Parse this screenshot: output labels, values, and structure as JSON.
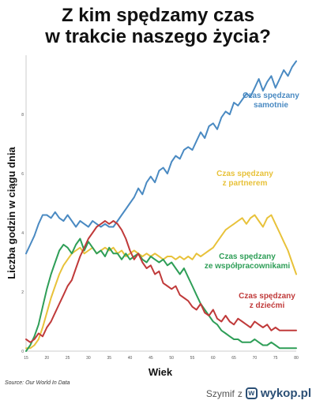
{
  "title_lines": [
    "Z kim spędzamy czas",
    "w trakcie naszego życia?"
  ],
  "source": "Source: Our World In Data",
  "watermark": {
    "author": "Szymif",
    "separator": "z",
    "site": "wykop.pl"
  },
  "chart_data": {
    "type": "line",
    "xlabel": "Wiek",
    "ylabel": "Liczba godzin w ciągu dnia",
    "xlim": [
      15,
      80
    ],
    "ylim": [
      0,
      10
    ],
    "xticks": [
      15,
      20,
      25,
      30,
      35,
      40,
      45,
      50,
      55,
      60,
      65,
      70,
      75,
      80
    ],
    "yticks": [
      0,
      2,
      4,
      6,
      8
    ],
    "grid": false,
    "series": [
      {
        "name": "Czas spędzany samotnie",
        "color": "#4a8ac2",
        "x": [
          15,
          16,
          17,
          18,
          19,
          20,
          21,
          22,
          23,
          24,
          25,
          26,
          27,
          28,
          29,
          30,
          31,
          32,
          33,
          34,
          35,
          36,
          37,
          38,
          39,
          40,
          41,
          42,
          43,
          44,
          45,
          46,
          47,
          48,
          49,
          50,
          51,
          52,
          53,
          54,
          55,
          56,
          57,
          58,
          59,
          60,
          61,
          62,
          63,
          64,
          65,
          66,
          67,
          68,
          69,
          70,
          71,
          72,
          73,
          74,
          75,
          76,
          77,
          78,
          79,
          80
        ],
        "y": [
          3.3,
          3.6,
          3.9,
          4.3,
          4.6,
          4.6,
          4.5,
          4.7,
          4.5,
          4.4,
          4.6,
          4.4,
          4.2,
          4.4,
          4.3,
          4.2,
          4.4,
          4.3,
          4.2,
          4.3,
          4.2,
          4.2,
          4.4,
          4.6,
          4.8,
          5.0,
          5.2,
          5.5,
          5.3,
          5.7,
          5.9,
          5.7,
          6.1,
          6.2,
          6.0,
          6.4,
          6.6,
          6.5,
          6.8,
          6.9,
          6.8,
          7.1,
          7.4,
          7.2,
          7.6,
          7.7,
          7.5,
          7.9,
          8.1,
          8.0,
          8.4,
          8.3,
          8.5,
          8.7,
          8.6,
          8.9,
          9.2,
          8.8,
          9.1,
          9.3,
          8.9,
          9.2,
          9.5,
          9.3,
          9.6,
          9.8
        ]
      },
      {
        "name": "Czas spędzany z partnerem",
        "color": "#e8c23a",
        "x": [
          15,
          16,
          17,
          18,
          19,
          20,
          21,
          22,
          23,
          24,
          25,
          26,
          27,
          28,
          29,
          30,
          31,
          32,
          33,
          34,
          35,
          36,
          37,
          38,
          39,
          40,
          41,
          42,
          43,
          44,
          45,
          46,
          47,
          48,
          49,
          50,
          51,
          52,
          53,
          54,
          55,
          56,
          57,
          58,
          59,
          60,
          61,
          62,
          63,
          64,
          65,
          66,
          67,
          68,
          69,
          70,
          71,
          72,
          73,
          74,
          75,
          76,
          77,
          78,
          79,
          80
        ],
        "y": [
          0.1,
          0.1,
          0.2,
          0.4,
          0.8,
          1.3,
          1.8,
          2.2,
          2.6,
          2.9,
          3.1,
          3.3,
          3.4,
          3.5,
          3.3,
          3.4,
          3.5,
          3.3,
          3.4,
          3.5,
          3.4,
          3.5,
          3.3,
          3.4,
          3.2,
          3.3,
          3.4,
          3.3,
          3.2,
          3.3,
          3.2,
          3.3,
          3.2,
          3.1,
          3.2,
          3.2,
          3.1,
          3.2,
          3.1,
          3.2,
          3.1,
          3.3,
          3.2,
          3.3,
          3.4,
          3.5,
          3.7,
          3.9,
          4.1,
          4.2,
          4.3,
          4.4,
          4.5,
          4.3,
          4.5,
          4.6,
          4.4,
          4.2,
          4.5,
          4.6,
          4.3,
          4.0,
          3.7,
          3.4,
          3.0,
          2.6
        ]
      },
      {
        "name": "Czas spędzany ze współpracownikami",
        "color": "#2e9e57",
        "x": [
          15,
          16,
          17,
          18,
          19,
          20,
          21,
          22,
          23,
          24,
          25,
          26,
          27,
          28,
          29,
          30,
          31,
          32,
          33,
          34,
          35,
          36,
          37,
          38,
          39,
          40,
          41,
          42,
          43,
          44,
          45,
          46,
          47,
          48,
          49,
          50,
          51,
          52,
          53,
          54,
          55,
          56,
          57,
          58,
          59,
          60,
          61,
          62,
          63,
          64,
          65,
          66,
          67,
          68,
          69,
          70,
          71,
          72,
          73,
          74,
          75,
          76,
          77,
          78,
          79,
          80
        ],
        "y": [
          0.0,
          0.2,
          0.5,
          0.9,
          1.5,
          2.1,
          2.6,
          3.0,
          3.4,
          3.6,
          3.5,
          3.3,
          3.6,
          3.8,
          3.4,
          3.7,
          3.5,
          3.3,
          3.4,
          3.2,
          3.5,
          3.3,
          3.3,
          3.1,
          3.3,
          3.1,
          3.2,
          3.3,
          3.1,
          3.0,
          3.2,
          3.1,
          3.0,
          3.1,
          2.9,
          3.0,
          2.8,
          2.6,
          2.8,
          2.5,
          2.2,
          1.9,
          1.6,
          1.4,
          1.2,
          1.0,
          0.9,
          0.7,
          0.6,
          0.5,
          0.4,
          0.4,
          0.3,
          0.3,
          0.3,
          0.4,
          0.3,
          0.2,
          0.2,
          0.3,
          0.2,
          0.1,
          0.1,
          0.1,
          0.1,
          0.1
        ]
      },
      {
        "name": "Czas spędzany z dziećmi",
        "color": "#c03a3a",
        "x": [
          15,
          16,
          17,
          18,
          19,
          20,
          21,
          22,
          23,
          24,
          25,
          26,
          27,
          28,
          29,
          30,
          31,
          32,
          33,
          34,
          35,
          36,
          37,
          38,
          39,
          40,
          41,
          42,
          43,
          44,
          45,
          46,
          47,
          48,
          49,
          50,
          51,
          52,
          53,
          54,
          55,
          56,
          57,
          58,
          59,
          60,
          61,
          62,
          63,
          64,
          65,
          66,
          67,
          68,
          69,
          70,
          71,
          72,
          73,
          74,
          75,
          76,
          77,
          78,
          79,
          80
        ],
        "y": [
          0.4,
          0.3,
          0.4,
          0.6,
          0.5,
          0.8,
          1.0,
          1.3,
          1.6,
          1.9,
          2.2,
          2.4,
          2.8,
          3.2,
          3.5,
          3.8,
          4.0,
          4.2,
          4.3,
          4.4,
          4.3,
          4.4,
          4.3,
          4.1,
          3.8,
          3.4,
          3.1,
          3.3,
          3.0,
          2.8,
          2.9,
          2.6,
          2.7,
          2.3,
          2.2,
          2.1,
          2.2,
          1.9,
          1.8,
          1.7,
          1.5,
          1.4,
          1.6,
          1.3,
          1.2,
          1.4,
          1.1,
          1.0,
          1.2,
          1.0,
          0.9,
          1.1,
          1.0,
          0.9,
          0.8,
          1.0,
          0.9,
          0.8,
          0.9,
          0.7,
          0.8,
          0.7,
          0.7,
          0.7,
          0.7,
          0.7
        ]
      }
    ],
    "annotations": [
      {
        "lines": [
          "Czas spędzany",
          "samotnie"
        ],
        "color": "#4a8ac2"
      },
      {
        "lines": [
          "Czas spędzany",
          "z partnerem"
        ],
        "color": "#e8c23a"
      },
      {
        "lines": [
          "Czas spędzany",
          "ze współpracownikami"
        ],
        "color": "#2e9e57"
      },
      {
        "lines": [
          "Czas spędzany",
          "z dziećmi"
        ],
        "color": "#c03a3a"
      }
    ]
  }
}
